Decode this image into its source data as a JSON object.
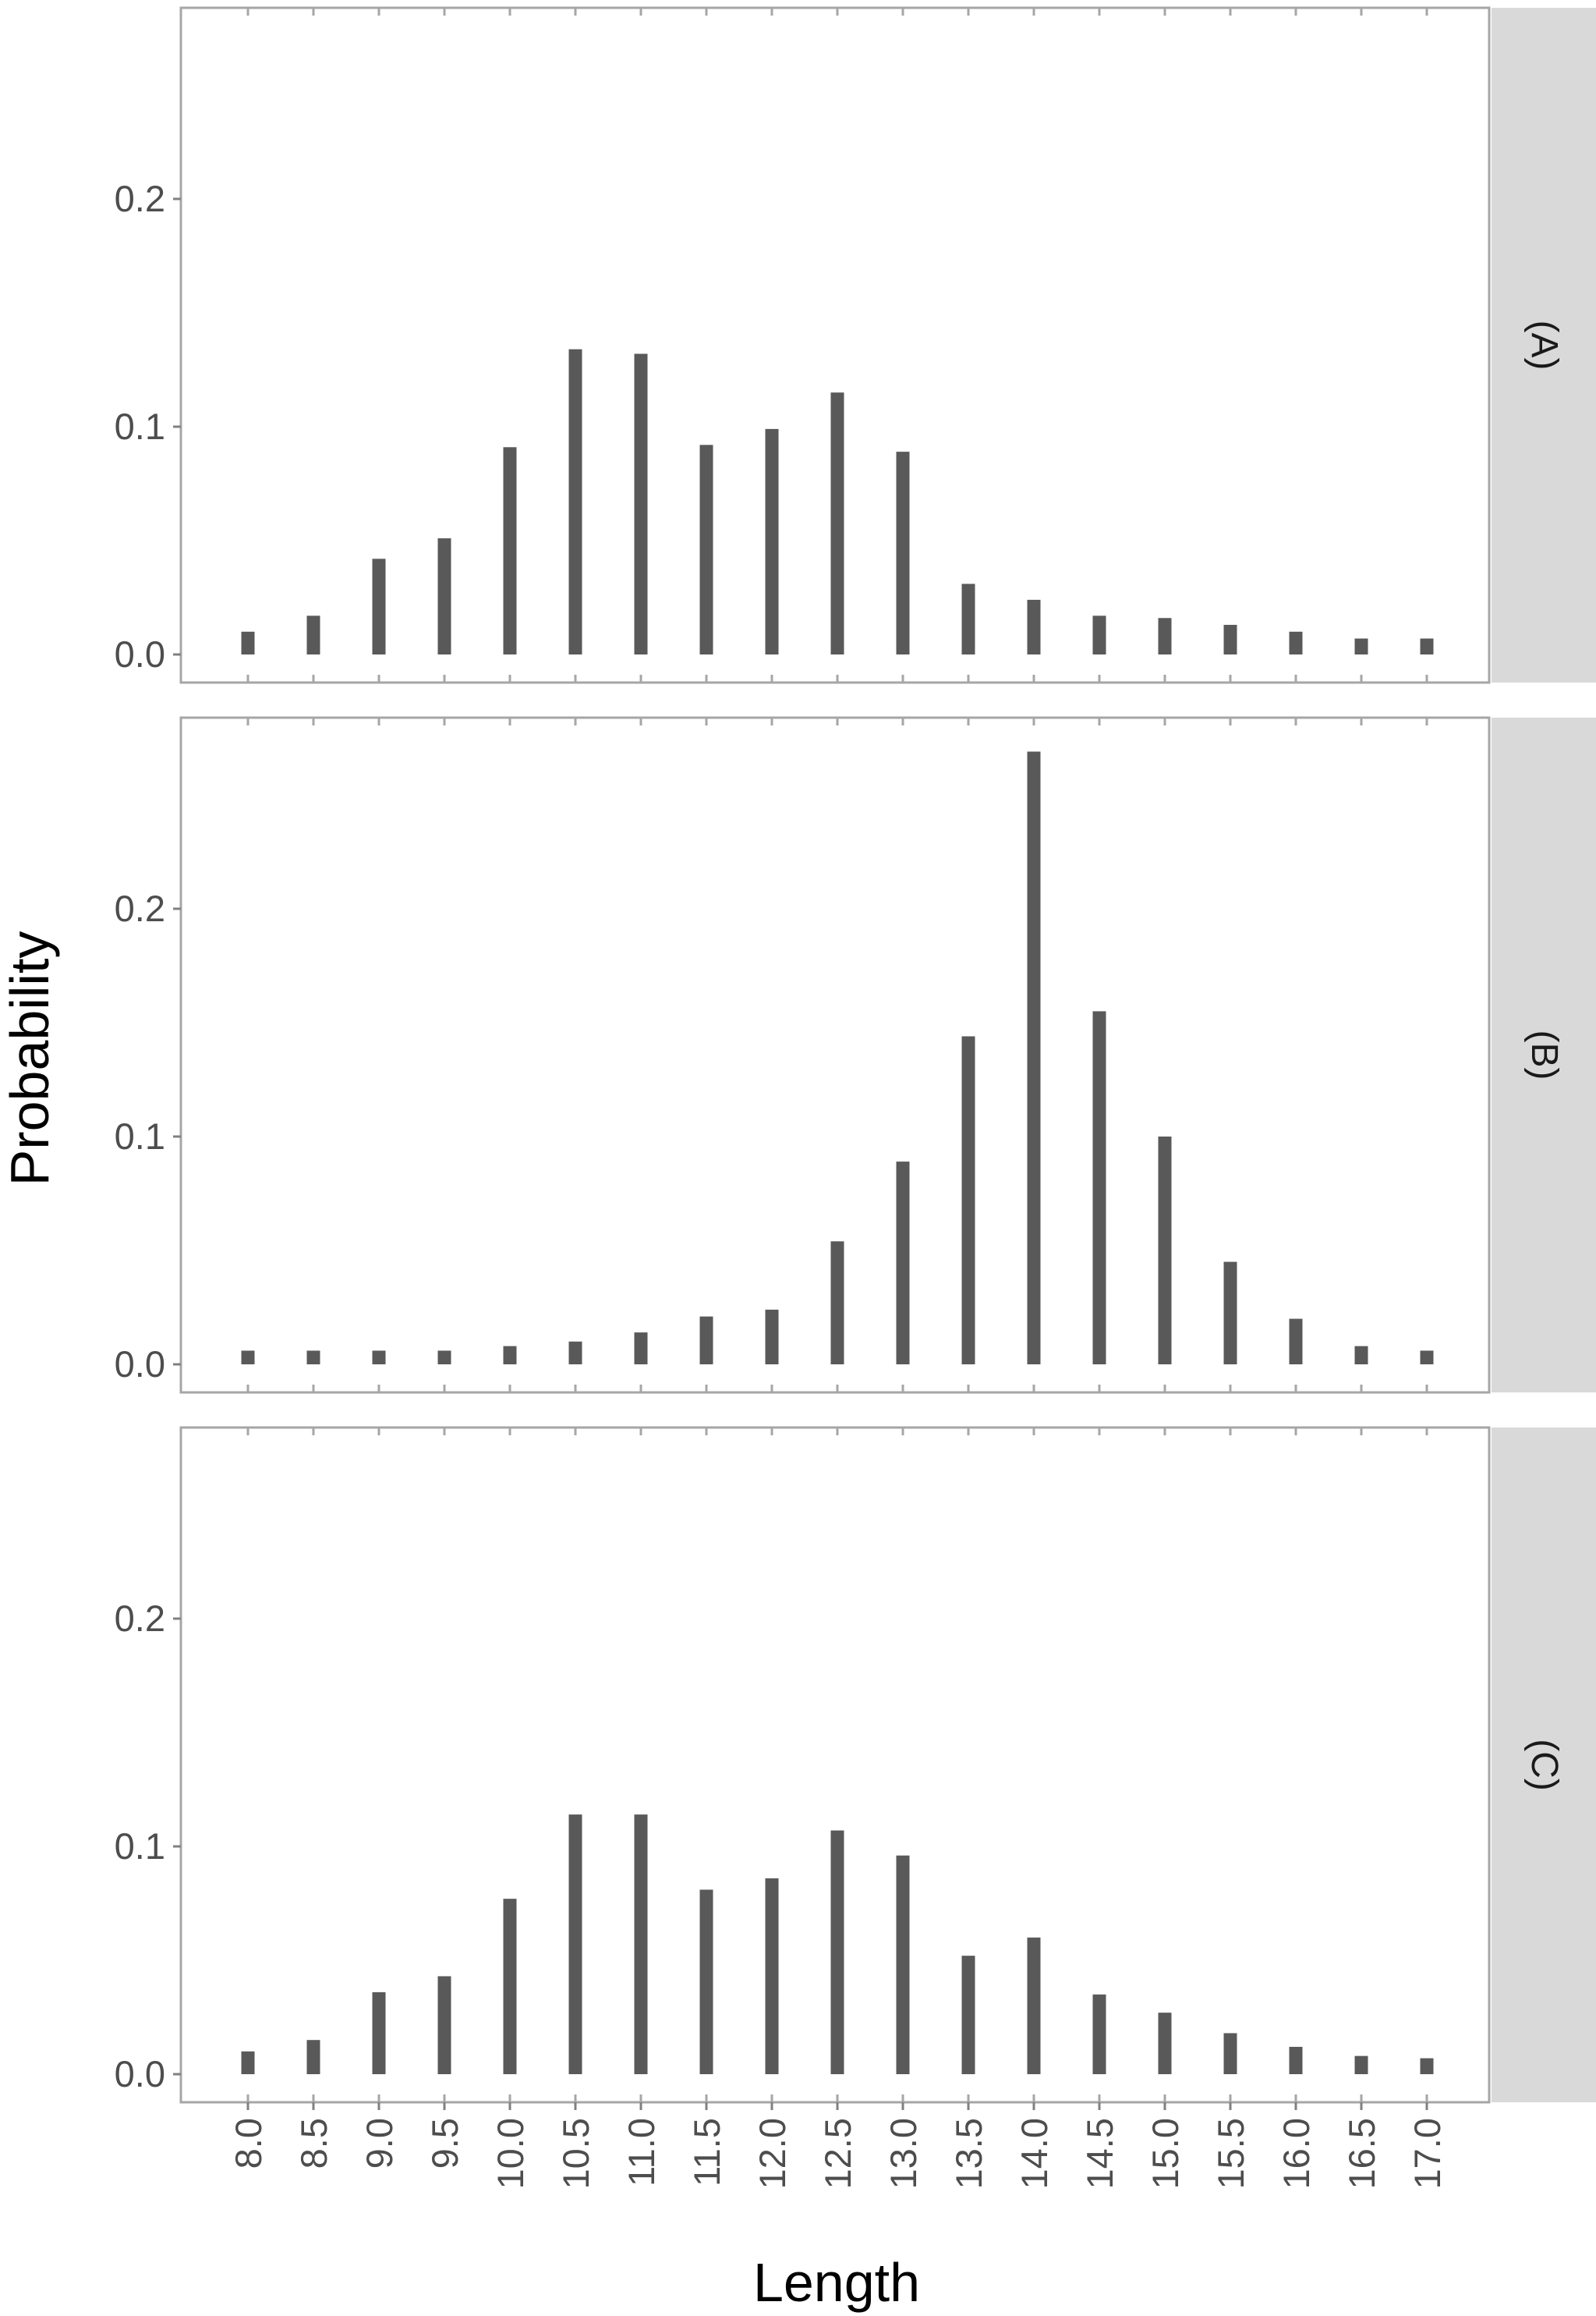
{
  "chart_data": {
    "type": "bar",
    "xlabel": "Length",
    "ylabel": "Probability",
    "categories": [
      "8.0",
      "8.5",
      "9.0",
      "9.5",
      "10.0",
      "10.5",
      "11.0",
      "11.5",
      "12.0",
      "12.5",
      "13.0",
      "13.5",
      "14.0",
      "14.5",
      "15.0",
      "15.5",
      "16.0",
      "16.5",
      "17.0"
    ],
    "y_ticks": [
      "0.0",
      "0.1",
      "0.2"
    ],
    "ylim": [
      0,
      0.28
    ],
    "grid": false,
    "facet_strip_position": "right",
    "bar_color": "#595959",
    "strip_color": "#d9d9d9",
    "facets": [
      {
        "label": "(A)",
        "values": [
          0.01,
          0.017,
          0.042,
          0.051,
          0.091,
          0.134,
          0.132,
          0.092,
          0.099,
          0.115,
          0.089,
          0.031,
          0.024,
          0.017,
          0.016,
          0.013,
          0.01,
          0.007,
          0.007
        ]
      },
      {
        "label": "(B)",
        "values": [
          0.006,
          0.006,
          0.006,
          0.006,
          0.008,
          0.01,
          0.014,
          0.021,
          0.024,
          0.054,
          0.089,
          0.144,
          0.269,
          0.155,
          0.1,
          0.045,
          0.02,
          0.008,
          0.006
        ]
      },
      {
        "label": "(C)",
        "values": [
          0.01,
          0.015,
          0.036,
          0.043,
          0.077,
          0.114,
          0.114,
          0.081,
          0.086,
          0.107,
          0.096,
          0.052,
          0.06,
          0.035,
          0.027,
          0.018,
          0.012,
          0.008,
          0.007
        ]
      }
    ]
  }
}
